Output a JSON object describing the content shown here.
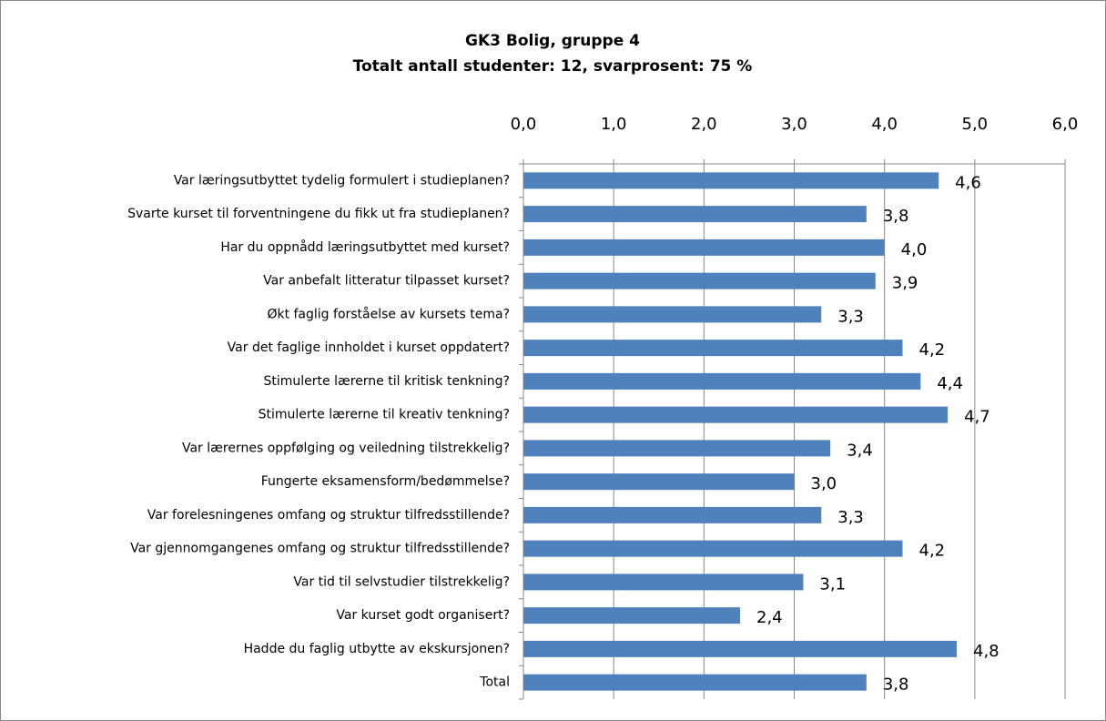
{
  "chart_data": {
    "type": "bar",
    "orientation": "horizontal",
    "title": "GK3 Bolig, gruppe 4",
    "subtitle": "Totalt antall studenter: 12, svarprosent: 75 %",
    "categories": [
      "Var læringsutbyttet tydelig formulert i studieplanen?",
      "Svarte kurset til forventningene du fikk ut fra studieplanen?",
      "Har du oppnådd læringsutbyttet med kurset?",
      "Var anbefalt litteratur tilpasset kurset?",
      "Økt faglig forståelse av kursets tema?",
      "Var det faglige innholdet i kurset oppdatert?",
      "Stimulerte lærerne til kritisk tenkning?",
      "Stimulerte lærerne til kreativ tenkning?",
      "Var lærernes oppfølging og veiledning tilstrekkelig?",
      "Fungerte eksamensform/bedømmelse?",
      "Var forelesningenes omfang og struktur tilfredsstillende?",
      "Var gjennomgangenes omfang og struktur tilfredsstillende?",
      "Var tid til selvstudier tilstrekkelig?",
      "Var kurset godt organisert?",
      "Hadde du faglig utbytte av ekskursjonen?",
      "Total"
    ],
    "values": [
      4.6,
      3.8,
      4.0,
      3.9,
      3.3,
      4.2,
      4.4,
      4.7,
      3.4,
      3.0,
      3.3,
      4.2,
      3.1,
      2.4,
      4.8,
      3.8
    ],
    "value_labels": [
      "4,6",
      "3,8",
      "4,0",
      "3,9",
      "3,3",
      "4,2",
      "4,4",
      "4,7",
      "3,4",
      "3,0",
      "3,3",
      "4,2",
      "3,1",
      "2,4",
      "4,8",
      "3,8"
    ],
    "color": "#4f81bd",
    "xlim": [
      0,
      6
    ],
    "xticks": [
      {
        "value": 0,
        "label": "0,0"
      },
      {
        "value": 1,
        "label": "1,0"
      },
      {
        "value": 2,
        "label": "2,0"
      },
      {
        "value": 3,
        "label": "3,0"
      },
      {
        "value": 4,
        "label": "4,0"
      },
      {
        "value": 5,
        "label": "5,0"
      },
      {
        "value": 6,
        "label": "6,0"
      }
    ],
    "grid": true
  }
}
